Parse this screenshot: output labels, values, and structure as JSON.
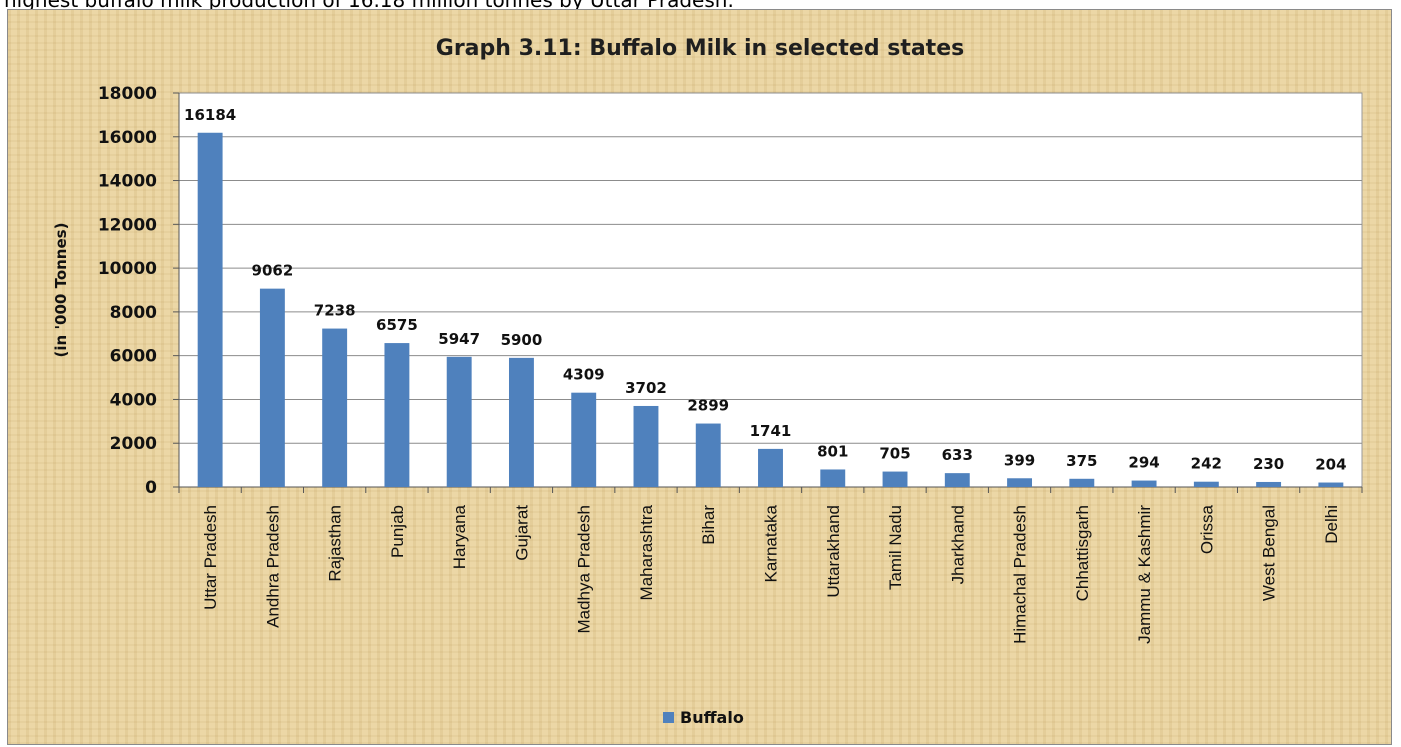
{
  "context_text": "highest buffalo milk production of 16.18 million tonnes by Uttar Pradesh.",
  "colors": {
    "bar": "#4f81bd",
    "plot_background": "#ffffff",
    "gridline": "#8c8c8c",
    "frame_background": "#ecd7a6"
  },
  "chart_data": {
    "type": "bar",
    "title": "Graph 3.11: Buffalo Milk in selected states",
    "xlabel": "",
    "ylabel": "(in '000 Tonnes)",
    "ylim": [
      0,
      18000
    ],
    "yticks": [
      0,
      2000,
      4000,
      6000,
      8000,
      10000,
      12000,
      14000,
      16000,
      18000
    ],
    "grid": true,
    "legend_position": "bottom",
    "categories": [
      "Uttar Pradesh",
      "Andhra Pradesh",
      "Rajasthan",
      "Punjab",
      "Haryana",
      "Gujarat",
      "Madhya Pradesh",
      "Maharashtra",
      "Bihar",
      "Karnataka",
      "Uttarakhand",
      "Tamil Nadu",
      "Jharkhand",
      "Himachal Pradesh",
      "Chhattisgarh",
      "Jammu & Kashmir",
      "Orissa",
      "West Bengal",
      "Delhi"
    ],
    "series": [
      {
        "name": "Buffalo",
        "values": [
          16184,
          9062,
          7238,
          6575,
          5947,
          5900,
          4309,
          3702,
          2899,
          1741,
          801,
          705,
          633,
          399,
          375,
          294,
          242,
          230,
          204
        ]
      }
    ]
  }
}
